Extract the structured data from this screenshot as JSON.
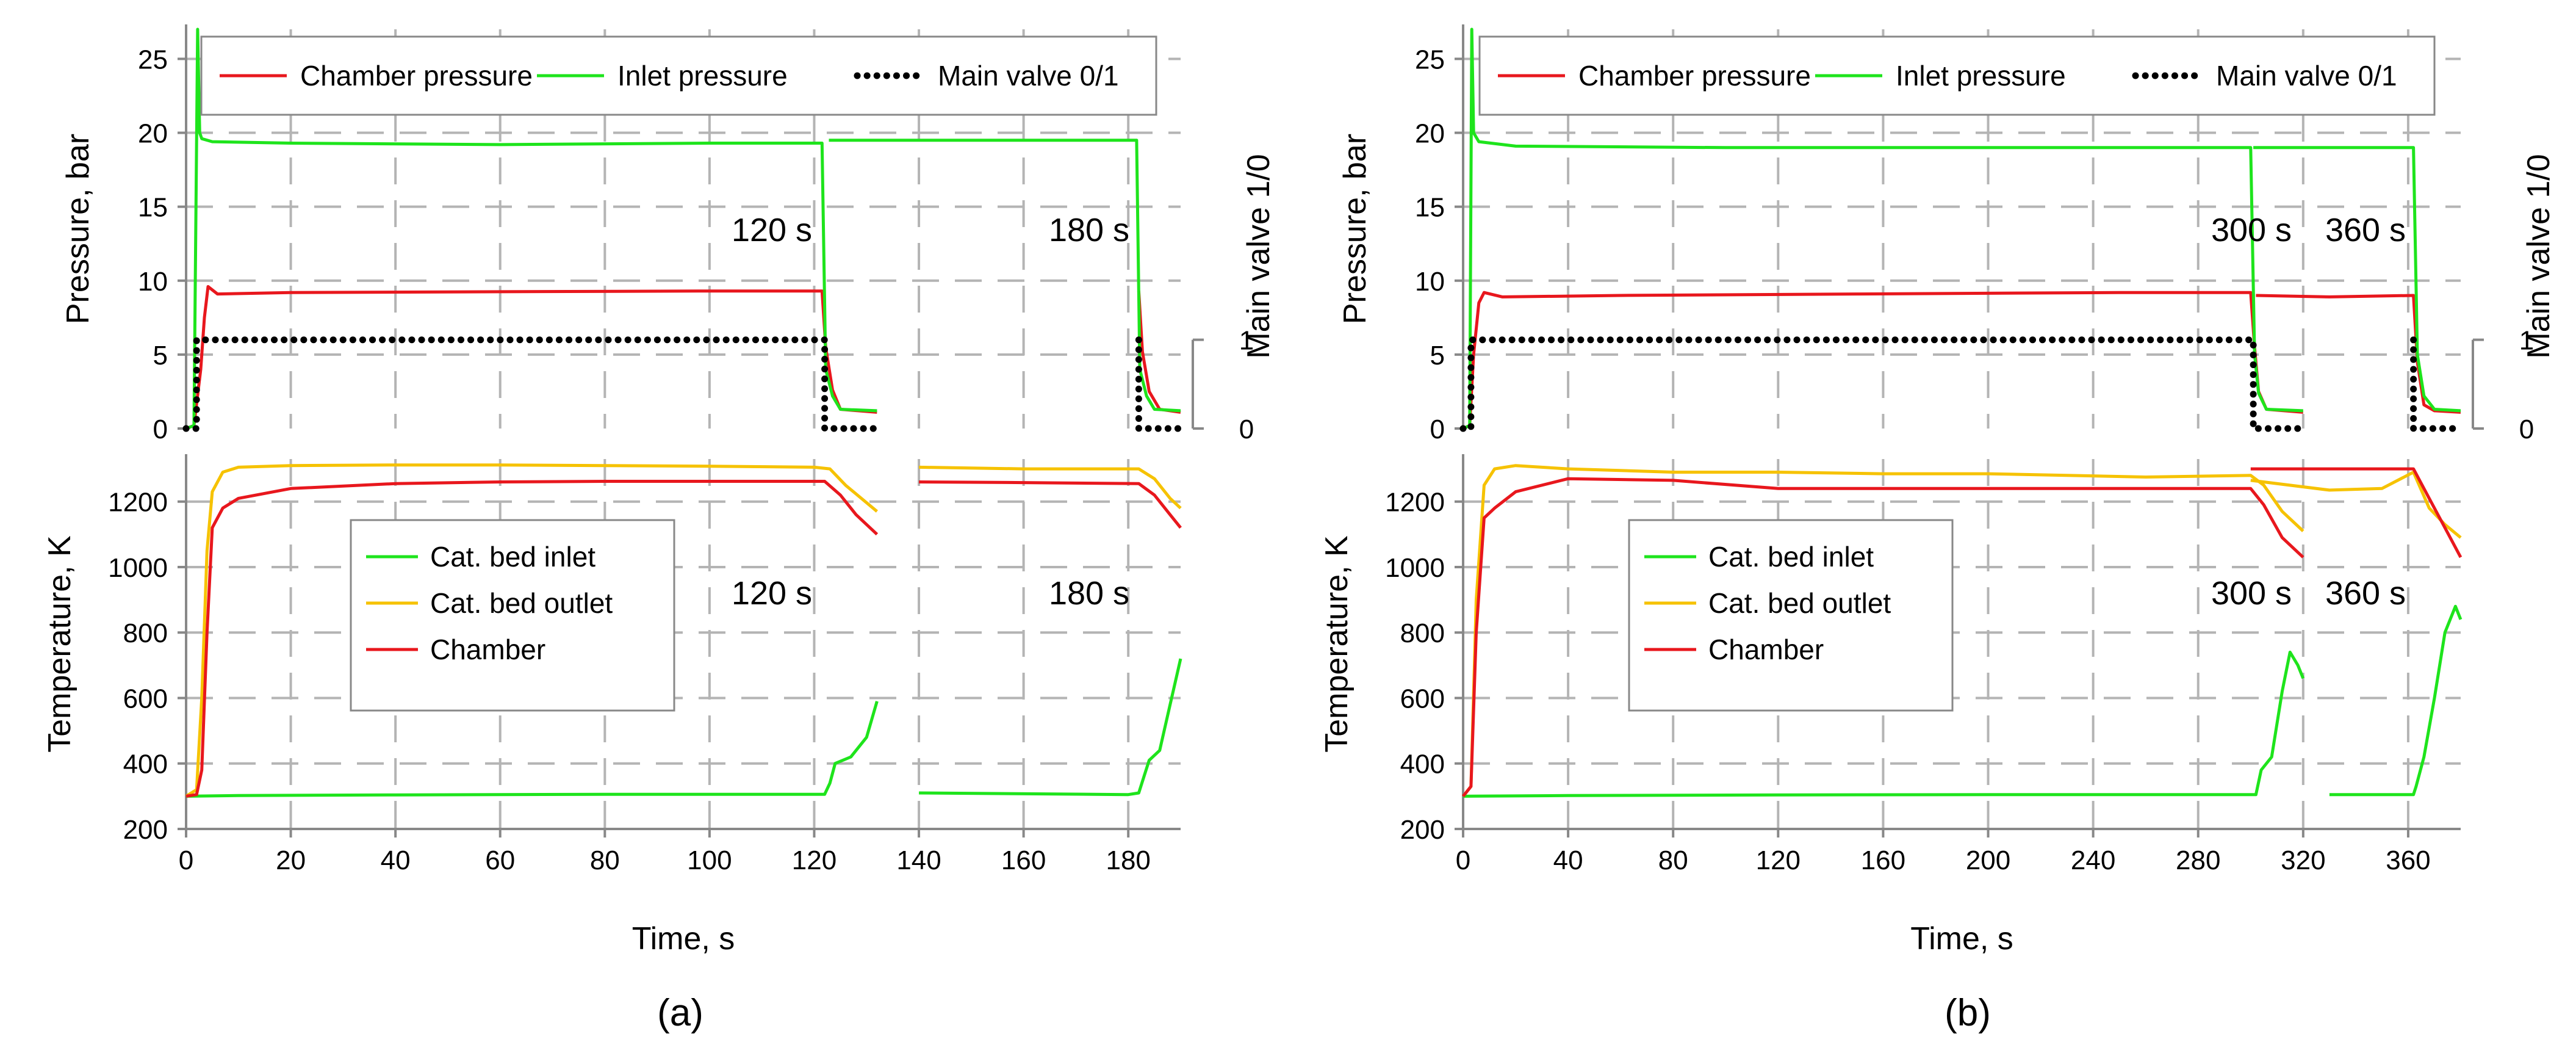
{
  "chart_data": [
    {
      "id": "a",
      "panel_label": "(a)",
      "type": "line",
      "xlabel": "Time, s",
      "xlim": [
        0,
        190
      ],
      "xticks": [
        0,
        20,
        40,
        60,
        80,
        100,
        120,
        140,
        160,
        180
      ],
      "pressure": {
        "ylabel": "Pressure, bar",
        "ylim": [
          0,
          27
        ],
        "yticks": [
          0,
          5,
          10,
          15,
          20,
          25
        ],
        "y2label": "Main valve 1/0",
        "y2ticks": [
          "0",
          "1"
        ],
        "legend": [
          "Chamber pressure",
          "Inlet pressure",
          "Main valve 0/1"
        ],
        "annotations": [
          "120 s",
          "180 s"
        ],
        "series": [
          {
            "name": "Chamber pressure",
            "color": "#e8171d",
            "x": [
              0,
              1.5,
              2.8,
              3.5,
              4.2,
              6,
              20,
              60,
              100,
              121.5,
              122.2,
              123.5,
              125,
              132,
              182,
              182.7,
              184,
              186,
              190
            ],
            "y": [
              0,
              0.2,
              4,
              7.5,
              9.6,
              9.1,
              9.2,
              9.25,
              9.3,
              9.3,
              5.5,
              2.6,
              1.3,
              1.1,
              9.3,
              5.2,
              2.5,
              1.3,
              1.1
            ],
            "break_after": 13
          },
          {
            "name": "Inlet pressure",
            "color": "#1ee41c",
            "x": [
              0,
              1.5,
              2.2,
              2.6,
              3,
              5,
              20,
              60,
              100,
              121.5,
              122.2,
              123.5,
              125,
              132,
              122.8,
              130,
              160,
              181.6,
              182.2,
              183.5,
              185,
              190
            ],
            "y": [
              0,
              0.2,
              27,
              20,
              19.6,
              19.4,
              19.3,
              19.2,
              19.3,
              19.3,
              4,
              2.2,
              1.3,
              1.2,
              19.5,
              19.5,
              19.5,
              19.5,
              4,
              2.2,
              1.3,
              1.2
            ],
            "break_after": 13
          },
          {
            "name": "Main valve 0/1",
            "color": "#000000",
            "dotted": true,
            "x": [
              0,
              2,
              2,
              122,
              122,
              132,
              182,
              182,
              190
            ],
            "y": [
              0,
              0,
              1,
              1,
              0,
              0,
              1,
              0,
              0
            ],
            "break_after": 5,
            "axis": "secondary"
          }
        ]
      },
      "temperature": {
        "ylabel": "Temperature, K",
        "ylim": [
          200,
          1330
        ],
        "yticks": [
          200,
          400,
          600,
          800,
          1000,
          1200
        ],
        "legend": [
          "Cat. bed inlet",
          "Cat. bed outlet",
          "Chamber"
        ],
        "annotations": [
          "120 s",
          "180 s"
        ],
        "series": [
          {
            "name": "Cat. bed inlet",
            "color": "#1ee41c",
            "x": [
              0,
              10,
              40,
              80,
              120,
              122,
              123,
              124,
              127,
              130,
              132,
              140,
              180,
              182,
              183,
              184,
              186,
              188,
              190
            ],
            "y": [
              300,
              302,
              304,
              306,
              306,
              306,
              340,
              400,
              420,
              480,
              590,
              310,
              305,
              310,
              360,
              410,
              440,
              580,
              720
            ],
            "break_after": 10
          },
          {
            "name": "Cat. bed outlet",
            "color": "#f6c200",
            "x": [
              0,
              2,
              3,
              4,
              5,
              7,
              10,
              20,
              40,
              60,
              80,
              100,
              120,
              123,
              126,
              132,
              140,
              160,
              182,
              185,
              188,
              190
            ],
            "y": [
              300,
              320,
              600,
              1050,
              1230,
              1290,
              1305,
              1310,
              1312,
              1312,
              1310,
              1308,
              1305,
              1300,
              1250,
              1170,
              1305,
              1300,
              1300,
              1270,
              1210,
              1180
            ],
            "break_after": 15
          },
          {
            "name": "Chamber",
            "color": "#e8171d",
            "x": [
              0,
              2,
              3,
              4,
              5,
              7,
              10,
              20,
              40,
              60,
              80,
              100,
              122,
              125,
              128,
              132,
              140,
              160,
              182,
              185,
              188,
              190
            ],
            "y": [
              300,
              305,
              380,
              800,
              1120,
              1180,
              1210,
              1240,
              1255,
              1260,
              1262,
              1262,
              1262,
              1220,
              1160,
              1100,
              1260,
              1258,
              1255,
              1220,
              1160,
              1120
            ],
            "break_after": 15
          }
        ]
      }
    },
    {
      "id": "b",
      "panel_label": "(b)",
      "type": "line",
      "xlabel": "Time, s",
      "xlim": [
        0,
        380
      ],
      "xticks": [
        0,
        40,
        80,
        120,
        160,
        200,
        240,
        280,
        320,
        360
      ],
      "pressure": {
        "ylabel": "Pressure, bar",
        "ylim": [
          0,
          27
        ],
        "yticks": [
          0,
          5,
          10,
          15,
          20,
          25
        ],
        "y2label": "Main valve 1/0",
        "y2ticks": [
          "0",
          "1"
        ],
        "legend": [
          "Chamber pressure",
          "Inlet pressure",
          "Main valve 0/1"
        ],
        "annotations": [
          "300 s",
          "360 s"
        ],
        "series": [
          {
            "name": "Chamber pressure",
            "color": "#e8171d",
            "x": [
              0,
              2.5,
              4,
              6,
              8,
              15,
              60,
              150,
              250,
              300,
              301.5,
              303,
              306,
              320,
              302,
              330,
              362,
              363.5,
              366,
              370,
              380
            ],
            "y": [
              0,
              0.2,
              5,
              8.5,
              9.2,
              8.9,
              9.0,
              9.1,
              9.2,
              9.2,
              5.5,
              2.5,
              1.3,
              1.1,
              9.0,
              8.9,
              9.0,
              4.5,
              1.6,
              1.2,
              1.1
            ],
            "break_after": 13
          },
          {
            "name": "Inlet pressure",
            "color": "#1ee41c",
            "x": [
              0,
              2.5,
              3.3,
              4,
              6,
              20,
              100,
              200,
              300,
              301.5,
              303,
              306,
              320,
              301,
              330,
              362,
              363.5,
              366,
              370,
              380
            ],
            "y": [
              0,
              0.2,
              27,
              20,
              19.4,
              19.1,
              19.0,
              19.0,
              19.0,
              5,
              2.4,
              1.3,
              1.2,
              19.0,
              19.0,
              19.0,
              5,
              2.2,
              1.3,
              1.2
            ],
            "break_after": 12
          },
          {
            "name": "Main valve 0/1",
            "color": "#000000",
            "dotted": true,
            "x": [
              0,
              3,
              3,
              301,
              301,
              320,
              362,
              362,
              380
            ],
            "y": [
              0,
              0,
              1,
              1,
              0,
              0,
              1,
              0,
              0
            ],
            "break_after": 5,
            "axis": "secondary"
          }
        ]
      },
      "temperature": {
        "ylabel": "Temperature, K",
        "ylim": [
          200,
          1330
        ],
        "yticks": [
          200,
          400,
          600,
          800,
          1000,
          1200
        ],
        "legend": [
          "Cat. bed inlet",
          "Cat. bed outlet",
          "Chamber"
        ],
        "annotations": [
          "300 s",
          "360 s"
        ],
        "series": [
          {
            "name": "Cat. bed inlet",
            "color": "#1ee41c",
            "x": [
              0,
              40,
              120,
              200,
              300,
              302,
              304,
              308,
              312,
              315,
              318,
              320,
              330,
              362,
              363,
              366,
              370,
              374,
              378,
              380
            ],
            "y": [
              300,
              302,
              304,
              305,
              305,
              305,
              380,
              420,
              620,
              740,
              700,
              660,
              305,
              305,
              330,
              420,
              600,
              800,
              880,
              840
            ],
            "break_after": 11
          },
          {
            "name": "Cat. bed outlet",
            "color": "#f6c200",
            "x": [
              0,
              3,
              5,
              8,
              12,
              20,
              40,
              80,
              120,
              160,
              200,
              260,
              300,
              305,
              312,
              320,
              300,
              330,
              350,
              362,
              368,
              374,
              380
            ],
            "y": [
              300,
              330,
              900,
              1250,
              1300,
              1310,
              1300,
              1290,
              1290,
              1285,
              1285,
              1275,
              1280,
              1250,
              1170,
              1110,
              1265,
              1235,
              1240,
              1290,
              1180,
              1130,
              1090
            ],
            "break_after": 15
          },
          {
            "name": "Chamber",
            "color": "#e8171d",
            "x": [
              0,
              3,
              5,
              8,
              12,
              20,
              40,
              80,
              120,
              160,
              200,
              260,
              300,
              305,
              312,
              320,
              300,
              330,
              362,
              368,
              374,
              380
            ],
            "y": [
              300,
              330,
              800,
              1150,
              1180,
              1230,
              1270,
              1265,
              1240,
              1240,
              1240,
              1240,
              1240,
              1190,
              1090,
              1030,
              1300,
              1300,
              1300,
              1210,
              1120,
              1030
            ],
            "break_after": 15
          }
        ]
      }
    }
  ]
}
